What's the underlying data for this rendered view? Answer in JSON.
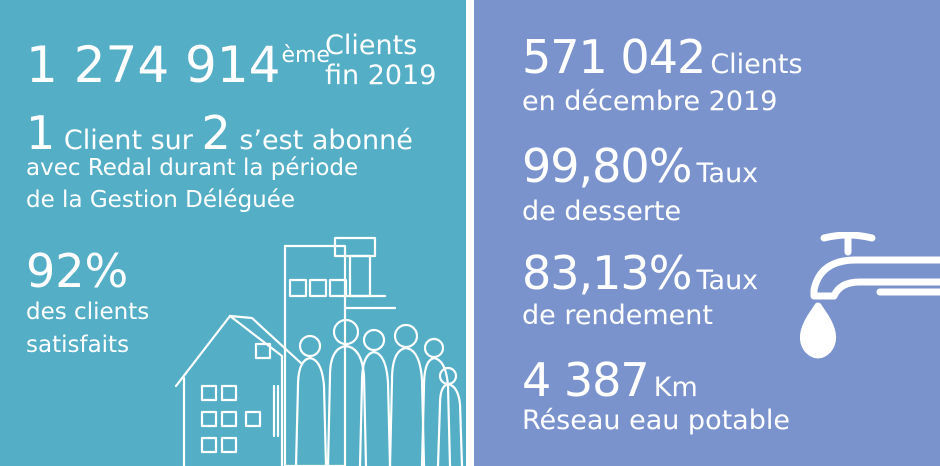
{
  "left_panel": {
    "background": "#53aec6",
    "stat1": {
      "value": "1 274 914",
      "ordinal": "ème",
      "label_line1": "Clients",
      "label_line2": "fin 2019"
    },
    "stat2": {
      "big1": "1",
      "text1": " Client sur ",
      "big2": "2",
      "text2": " s’est abonné",
      "line2": "avec Redal durant la période",
      "line3": "de la Gestion Déléguée"
    },
    "stat3": {
      "value": "92%",
      "line1": "des  clients",
      "line2": "satisfaits"
    },
    "illustration": "house-and-people-icon"
  },
  "right_panel": {
    "background": "#7a93cd",
    "stat1": {
      "value": "571 042",
      "label": "Clients",
      "line2": "en décembre 2019"
    },
    "stat2": {
      "value": "99,80%",
      "label": "Taux",
      "line2": "de desserte"
    },
    "stat3": {
      "value": "83,13%",
      "label": "Taux",
      "line2": "de rendement"
    },
    "stat4": {
      "value": "4 387",
      "label": "Km",
      "line2": "Réseau eau potable"
    },
    "illustration": "water-tap-icon"
  }
}
